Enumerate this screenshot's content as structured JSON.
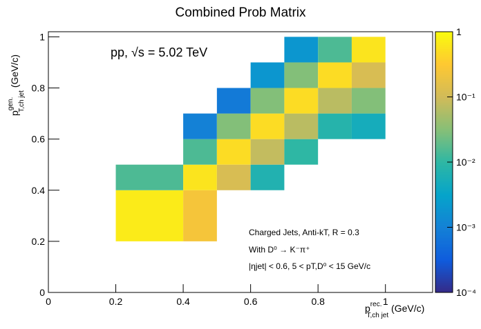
{
  "chart_data": {
    "type": "heatmap",
    "title": "Combined Prob Matrix",
    "x_label": {
      "main": "p",
      "sup": "rec.",
      "sub": "T,ch jet",
      "unit": " (GeV/c)"
    },
    "y_label": {
      "main": "p",
      "sup": "gen.",
      "sub": "T,ch jet",
      "unit": " (GeV/c)"
    },
    "annotations": [
      "pp, √s = 5.02 TeV",
      "Charged Jets, Anti-kT, R = 0.3",
      "With D⁰ → K⁻π⁺",
      "|ηjet| < 0.6, 5 < pT,D⁰ < 15 GeV/c"
    ],
    "xbins": [
      0.2,
      0.4,
      0.5,
      0.6,
      0.7,
      0.8,
      0.9,
      1.0
    ],
    "ybins": [
      0.2,
      0.4,
      0.5,
      0.6,
      0.7,
      0.8,
      0.9,
      1.0
    ],
    "z": [
      [
        0.7,
        0.25,
        null,
        null,
        null,
        null,
        null
      ],
      [
        0.015,
        0.6,
        0.12,
        0.007,
        null,
        null,
        null
      ],
      [
        null,
        0.015,
        0.5,
        0.08,
        0.01,
        null,
        null
      ],
      [
        null,
        0.001,
        0.03,
        0.5,
        0.07,
        0.008,
        0.005
      ],
      [
        null,
        null,
        0.0008,
        0.03,
        0.5,
        0.07,
        0.03
      ],
      [
        null,
        null,
        null,
        0.002,
        0.03,
        0.5,
        0.12
      ],
      [
        null,
        null,
        null,
        null,
        0.002,
        0.015,
        0.6
      ]
    ],
    "xlim": [
      0,
      1.14
    ],
    "ylim": [
      0,
      1.02
    ],
    "xticks": [
      0,
      0.2,
      0.4,
      0.6,
      0.8,
      1
    ],
    "yticks": [
      0,
      0.2,
      0.4,
      0.6,
      0.8,
      1
    ],
    "zlim": [
      0.0001,
      1
    ],
    "zlog": true,
    "zticks": [
      {
        "value": 0.0001,
        "label": "10⁻⁴"
      },
      {
        "value": 0.001,
        "label": "10⁻³"
      },
      {
        "value": 0.01,
        "label": "10⁻²"
      },
      {
        "value": 0.1,
        "label": "10⁻¹"
      },
      1
    ],
    "colormap": [
      "#352a87",
      "#0f5cdd",
      "#1481d6",
      "#06a4ca",
      "#2eb7a4",
      "#87bf77",
      "#d1bb59",
      "#fec832",
      "#f9fb0e"
    ]
  }
}
